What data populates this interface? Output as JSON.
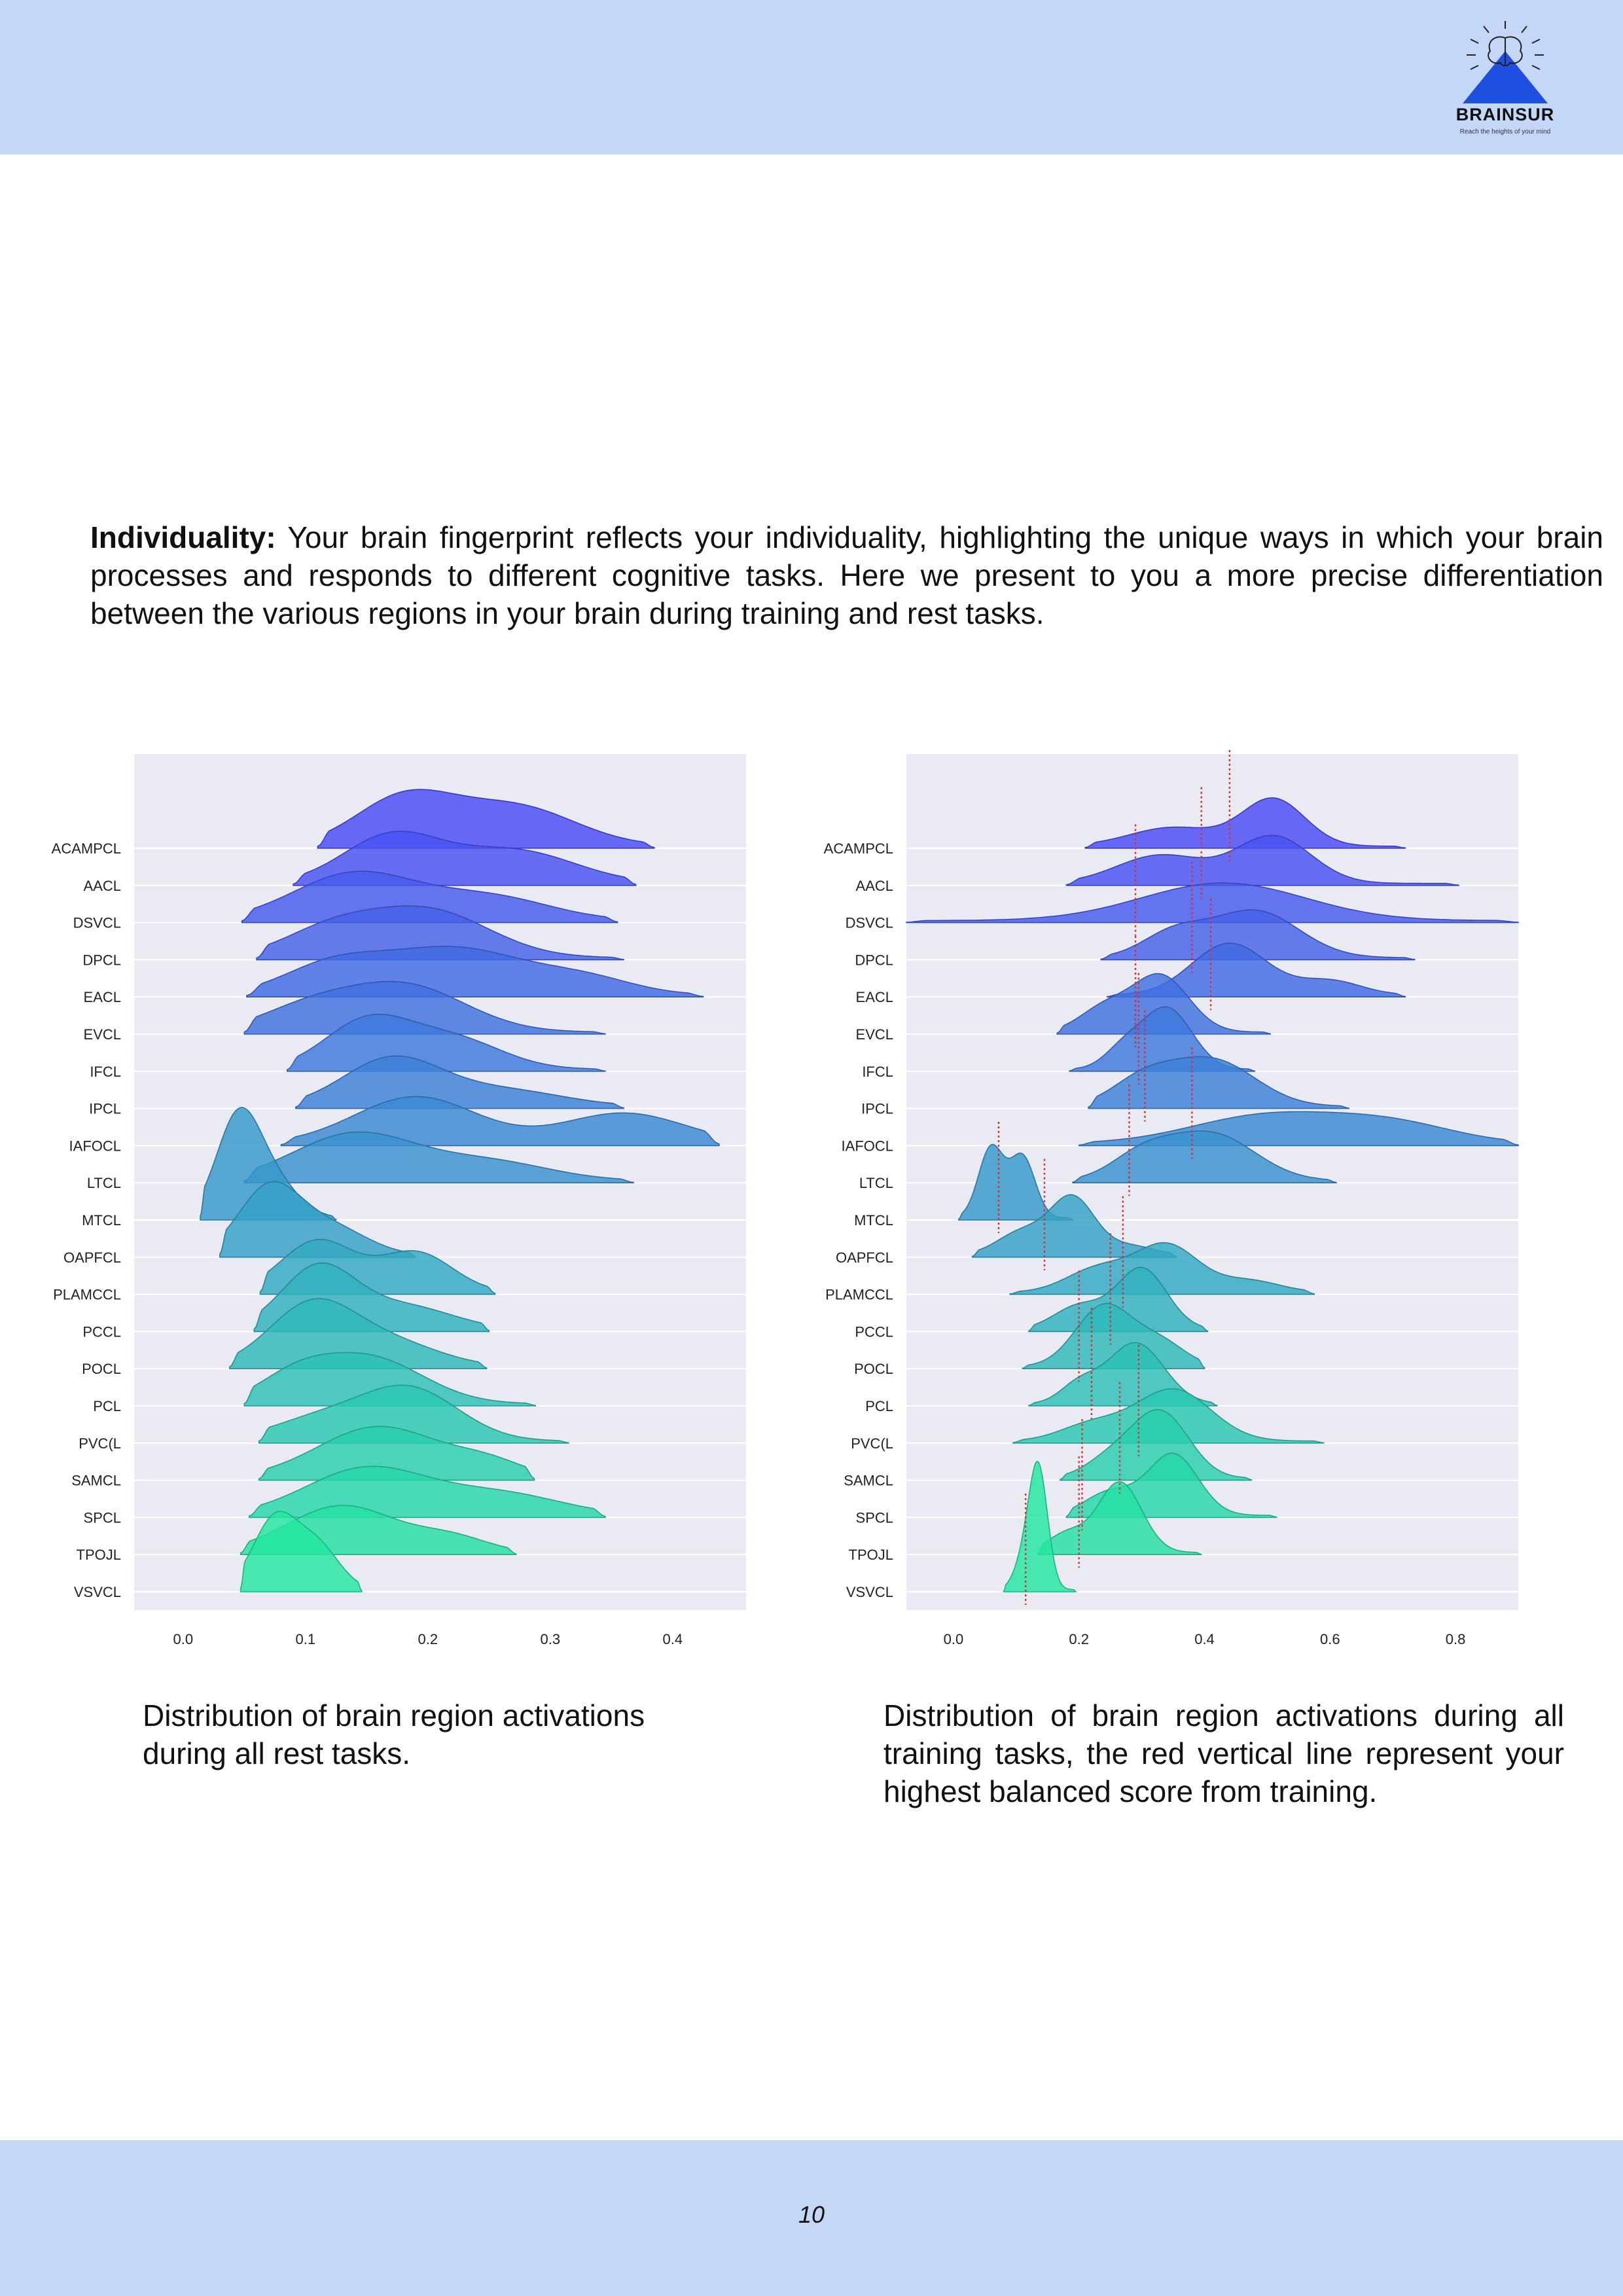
{
  "logo": {
    "name": "BRAINSUR",
    "tagline": "Reach the heights of your mind",
    "color": "#1e4fe0"
  },
  "intro": {
    "bold": "Individuality:",
    "text": " Your brain fingerprint reflects your individuality, highlighting the unique ways in which your brain processes and responds to different cognitive tasks. Here we present to you a more precise differentiation between the various regions in your brain during training and rest tasks."
  },
  "captions": {
    "rest": "Distribution of brain region activations during all rest tasks.",
    "train": "Distribution of brain region activations during all training tasks, the red vertical line represent your highest balanced score from training."
  },
  "page_number": "10",
  "chart_data": [
    {
      "type": "ridgeline",
      "name": "rest",
      "categories": [
        "ACAMPCL",
        "AACL",
        "DSVCL",
        "DPCL",
        "EACL",
        "EVCL",
        "IFCL",
        "IPCL",
        "IAFOCL",
        "LTCL",
        "MTCL",
        "OAPFCL",
        "PLAMCCL",
        "PCCL",
        "POCL",
        "PCL",
        "PVC(L",
        "SAMCL",
        "SPCL",
        "TPOJL",
        "VSVCL"
      ],
      "xlim": [
        -0.04,
        0.46
      ],
      "xticks": [
        0.0,
        0.1,
        0.2,
        0.3,
        0.4
      ],
      "xtick_labels": [
        "0.0",
        "0.1",
        "0.2",
        "0.3",
        "0.4"
      ],
      "color_top": "#4a4af5",
      "color_bottom": "#22e8a0",
      "grid": true,
      "background": "#eaeaf2",
      "series": [
        {
          "region": "ACAMPCL",
          "xmin": 0.11,
          "xmax": 0.385,
          "peaks": [
            [
              0.18,
              1.0,
              0.04
            ],
            [
              0.27,
              0.85,
              0.05
            ]
          ]
        },
        {
          "region": "AACL",
          "xmin": 0.09,
          "xmax": 0.37,
          "peaks": [
            [
              0.17,
              1.0,
              0.04
            ],
            [
              0.27,
              0.7,
              0.05
            ]
          ]
        },
        {
          "region": "DSVCL",
          "xmin": 0.048,
          "xmax": 0.355,
          "peaks": [
            [
              0.14,
              1.0,
              0.05
            ],
            [
              0.25,
              0.5,
              0.05
            ]
          ]
        },
        {
          "region": "DPCL",
          "xmin": 0.06,
          "xmax": 0.36,
          "peaks": [
            [
              0.2,
              1.0,
              0.05
            ],
            [
              0.12,
              0.55,
              0.04
            ]
          ]
        },
        {
          "region": "EACL",
          "xmin": 0.052,
          "xmax": 0.425,
          "peaks": [
            [
              0.22,
              1.0,
              0.06
            ],
            [
              0.12,
              0.55,
              0.04
            ],
            [
              0.33,
              0.3,
              0.04
            ]
          ]
        },
        {
          "region": "EVCL",
          "xmin": 0.05,
          "xmax": 0.345,
          "peaks": [
            [
              0.18,
              1.0,
              0.05
            ],
            [
              0.1,
              0.45,
              0.04
            ]
          ]
        },
        {
          "region": "IFCL",
          "xmin": 0.085,
          "xmax": 0.345,
          "peaks": [
            [
              0.15,
              1.0,
              0.035
            ],
            [
              0.22,
              0.65,
              0.04
            ]
          ]
        },
        {
          "region": "IPCL",
          "xmin": 0.092,
          "xmax": 0.36,
          "peaks": [
            [
              0.17,
              1.0,
              0.04
            ],
            [
              0.26,
              0.35,
              0.05
            ]
          ]
        },
        {
          "region": "IAFOCL",
          "xmin": 0.08,
          "xmax": 0.438,
          "peaks": [
            [
              0.19,
              1.0,
              0.05
            ],
            [
              0.36,
              0.65,
              0.05
            ]
          ]
        },
        {
          "region": "LTCL",
          "xmin": 0.05,
          "xmax": 0.368,
          "peaks": [
            [
              0.14,
              1.0,
              0.05
            ],
            [
              0.25,
              0.4,
              0.05
            ]
          ]
        },
        {
          "region": "MTCL",
          "xmin": 0.014,
          "xmax": 0.125,
          "peaks": [
            [
              0.045,
              2.1,
              0.018
            ],
            [
              0.075,
              0.7,
              0.02
            ]
          ]
        },
        {
          "region": "OAPFCL",
          "xmin": 0.03,
          "xmax": 0.19,
          "peaks": [
            [
              0.07,
              1.4,
              0.025
            ],
            [
              0.12,
              0.6,
              0.03
            ]
          ]
        },
        {
          "region": "PLAMCCL",
          "xmin": 0.063,
          "xmax": 0.255,
          "peaks": [
            [
              0.11,
              1.1,
              0.03
            ],
            [
              0.19,
              0.85,
              0.03
            ]
          ]
        },
        {
          "region": "PCCL",
          "xmin": 0.058,
          "xmax": 0.25,
          "peaks": [
            [
              0.11,
              1.3,
              0.03
            ],
            [
              0.18,
              0.5,
              0.04
            ]
          ]
        },
        {
          "region": "POCL",
          "xmin": 0.038,
          "xmax": 0.248,
          "peaks": [
            [
              0.105,
              1.3,
              0.035
            ],
            [
              0.17,
              0.5,
              0.04
            ]
          ]
        },
        {
          "region": "PCL",
          "xmin": 0.05,
          "xmax": 0.288,
          "peaks": [
            [
              0.15,
              1.0,
              0.045
            ],
            [
              0.09,
              0.45,
              0.03
            ]
          ]
        },
        {
          "region": "PVC(L",
          "xmin": 0.062,
          "xmax": 0.315,
          "peaks": [
            [
              0.185,
              1.1,
              0.04
            ],
            [
              0.11,
              0.45,
              0.04
            ]
          ]
        },
        {
          "region": "SAMCL",
          "xmin": 0.062,
          "xmax": 0.287,
          "peaks": [
            [
              0.16,
              1.1,
              0.05
            ],
            [
              0.25,
              0.3,
              0.03
            ]
          ]
        },
        {
          "region": "SPCL",
          "xmin": 0.054,
          "xmax": 0.345,
          "peaks": [
            [
              0.15,
              1.0,
              0.05
            ],
            [
              0.26,
              0.45,
              0.05
            ]
          ]
        },
        {
          "region": "TPOJL",
          "xmin": 0.047,
          "xmax": 0.272,
          "peaks": [
            [
              0.13,
              1.0,
              0.045
            ],
            [
              0.22,
              0.3,
              0.03
            ]
          ]
        },
        {
          "region": "VSVCL",
          "xmin": 0.047,
          "xmax": 0.146,
          "peaks": [
            [
              0.075,
              1.5,
              0.018
            ],
            [
              0.11,
              0.9,
              0.018
            ]
          ]
        }
      ]
    },
    {
      "type": "ridgeline",
      "name": "train",
      "categories": [
        "ACAMPCL",
        "AACL",
        "DSVCL",
        "DPCL",
        "EACL",
        "EVCL",
        "IFCL",
        "IPCL",
        "IAFOCL",
        "LTCL",
        "MTCL",
        "OAPFCL",
        "PLAMCCL",
        "PCCL",
        "POCL",
        "PCL",
        "PVC(L",
        "SAMCL",
        "SPCL",
        "TPOJL",
        "VSVCL"
      ],
      "xlim": [
        -0.075,
        0.9
      ],
      "xticks": [
        0.0,
        0.2,
        0.4,
        0.6,
        0.8
      ],
      "xtick_labels": [
        "0.0",
        "0.2",
        "0.4",
        "0.6",
        "0.8"
      ],
      "color_top": "#4a4af5",
      "color_bottom": "#22e8a0",
      "marker_color": "#d62d3a",
      "grid": true,
      "background": "#eaeaf2",
      "series": [
        {
          "region": "ACAMPCL",
          "xmin": 0.21,
          "xmax": 0.72,
          "best": 0.44,
          "peaks": [
            [
              0.51,
              1.0,
              0.05
            ],
            [
              0.35,
              0.4,
              0.07
            ]
          ]
        },
        {
          "region": "AACL",
          "xmin": 0.18,
          "xmax": 0.805,
          "best": 0.395,
          "peaks": [
            [
              0.51,
              1.0,
              0.06
            ],
            [
              0.33,
              0.6,
              0.07
            ]
          ]
        },
        {
          "region": "DSVCL",
          "xmin": -0.075,
          "xmax": 0.9,
          "best": 0.29,
          "peaks": [
            [
              0.43,
              0.8,
              0.13
            ]
          ]
        },
        {
          "region": "DPCL",
          "xmin": 0.235,
          "xmax": 0.735,
          "best": 0.38,
          "peaks": [
            [
              0.48,
              1.0,
              0.07
            ],
            [
              0.35,
              0.5,
              0.05
            ]
          ]
        },
        {
          "region": "EACL",
          "xmin": 0.245,
          "xmax": 0.72,
          "best": 0.41,
          "peaks": [
            [
              0.44,
              1.1,
              0.06
            ],
            [
              0.6,
              0.3,
              0.05
            ]
          ]
        },
        {
          "region": "EVCL",
          "xmin": 0.165,
          "xmax": 0.505,
          "best": 0.29,
          "peaks": [
            [
              0.33,
              1.2,
              0.045
            ],
            [
              0.24,
              0.5,
              0.04
            ]
          ]
        },
        {
          "region": "IFCL",
          "xmin": 0.185,
          "xmax": 0.48,
          "best": 0.295,
          "peaks": [
            [
              0.34,
              1.3,
              0.04
            ],
            [
              0.27,
              0.4,
              0.03
            ]
          ]
        },
        {
          "region": "IPCL",
          "xmin": 0.215,
          "xmax": 0.63,
          "best": 0.305,
          "peaks": [
            [
              0.41,
              1.0,
              0.07
            ],
            [
              0.3,
              0.5,
              0.05
            ]
          ]
        },
        {
          "region": "IAFOCL",
          "xmin": 0.2,
          "xmax": 0.9,
          "best": 0.38,
          "peaks": [
            [
              0.5,
              0.6,
              0.12
            ],
            [
              0.7,
              0.4,
              0.1
            ]
          ]
        },
        {
          "region": "LTCL",
          "xmin": 0.19,
          "xmax": 0.61,
          "best": 0.28,
          "peaks": [
            [
              0.41,
              1.0,
              0.07
            ],
            [
              0.3,
              0.5,
              0.05
            ]
          ]
        },
        {
          "region": "MTCL",
          "xmin": 0.008,
          "xmax": 0.19,
          "best": 0.072,
          "peaks": [
            [
              0.06,
              1.5,
              0.02
            ],
            [
              0.11,
              1.3,
              0.02
            ]
          ]
        },
        {
          "region": "OAPFCL",
          "xmin": 0.03,
          "xmax": 0.355,
          "best": 0.145,
          "peaks": [
            [
              0.19,
              1.2,
              0.035
            ],
            [
              0.11,
              0.5,
              0.04
            ],
            [
              0.28,
              0.2,
              0.04
            ]
          ]
        },
        {
          "region": "PLAMCCL",
          "xmin": 0.09,
          "xmax": 0.575,
          "best": 0.27,
          "peaks": [
            [
              0.34,
              1.0,
              0.05
            ],
            [
              0.23,
              0.5,
              0.05
            ],
            [
              0.47,
              0.25,
              0.05
            ]
          ]
        },
        {
          "region": "PCCL",
          "xmin": 0.12,
          "xmax": 0.405,
          "best": 0.25,
          "peaks": [
            [
              0.3,
              1.3,
              0.04
            ],
            [
              0.2,
              0.5,
              0.04
            ]
          ]
        },
        {
          "region": "POCL",
          "xmin": 0.11,
          "xmax": 0.4,
          "best": 0.2,
          "peaks": [
            [
              0.24,
              1.3,
              0.045
            ],
            [
              0.33,
              0.5,
              0.04
            ]
          ]
        },
        {
          "region": "PCL",
          "xmin": 0.12,
          "xmax": 0.42,
          "best": 0.22,
          "peaks": [
            [
              0.29,
              1.3,
              0.045
            ],
            [
              0.2,
              0.4,
              0.03
            ]
          ]
        },
        {
          "region": "PVC(L",
          "xmin": 0.095,
          "xmax": 0.59,
          "best": 0.295,
          "peaks": [
            [
              0.35,
              1.1,
              0.06
            ],
            [
              0.22,
              0.35,
              0.05
            ]
          ]
        },
        {
          "region": "SAMCL",
          "xmin": 0.17,
          "xmax": 0.475,
          "best": 0.265,
          "peaks": [
            [
              0.33,
              1.4,
              0.045
            ],
            [
              0.25,
              0.4,
              0.04
            ]
          ]
        },
        {
          "region": "SPCL",
          "xmin": 0.18,
          "xmax": 0.515,
          "best": 0.205,
          "peaks": [
            [
              0.35,
              1.3,
              0.04
            ],
            [
              0.25,
              0.5,
              0.04
            ]
          ]
        },
        {
          "region": "TPOJL",
          "xmin": 0.135,
          "xmax": 0.395,
          "best": 0.2,
          "peaks": [
            [
              0.265,
              1.5,
              0.035
            ],
            [
              0.18,
              0.4,
              0.03
            ]
          ]
        },
        {
          "region": "VSVCL",
          "xmin": 0.08,
          "xmax": 0.195,
          "best": 0.115,
          "peaks": [
            [
              0.135,
              2.6,
              0.015
            ],
            [
              0.11,
              0.5,
              0.015
            ]
          ]
        }
      ]
    }
  ]
}
